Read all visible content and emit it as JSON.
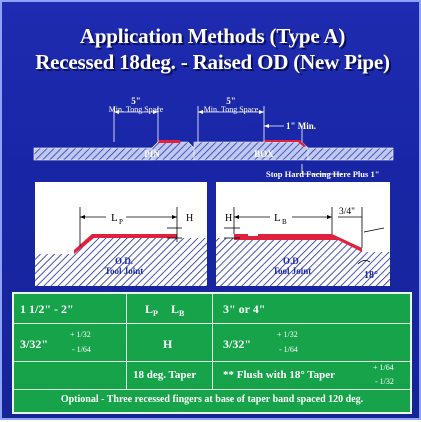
{
  "title": {
    "line1": "Application Methods (Type A)",
    "line2": "Recessed 18deg. - Raised OD (New Pipe)"
  },
  "top_diagram": {
    "dim_left_value": "5\"",
    "dim_left_label": "Min. Tong Space",
    "dim_right_value": "5\"",
    "dim_right_label": "Min. Tong Space",
    "min_label": "1\" Min.",
    "pin_label": "PIN",
    "box_label": "BOX",
    "stop_label": "Stop Hard Facing Here Plus 1\""
  },
  "detail_left": {
    "lp": "L",
    "lp_sub": "P",
    "h": "H",
    "od": "O.D.",
    "tool_joint": "Tool Joint"
  },
  "detail_right": {
    "h": "H",
    "lb": "L",
    "lb_sub": "B",
    "three_quarter": "3/4\"",
    "od": "O.D.",
    "tool_joint": "Tool Joint",
    "angle": "18°"
  },
  "table": {
    "row1": {
      "c1": "1 1/2\" - 2\"",
      "c2_l": "L",
      "c2_lsub": "P",
      "c2_b": "L",
      "c2_bsub": "B",
      "c3": "3\" or 4\""
    },
    "row2": {
      "c1_main": "3/32\"",
      "c1_plus": "+ 1/32",
      "c1_minus": "- 1/64",
      "c2": "H",
      "c3_main": "3/32\"",
      "c3_plus": "+ 1/32",
      "c3_minus": "- 1/64"
    },
    "row3": {
      "c2": "18 deg. Taper",
      "c3_main": "** Flush with 18° Taper",
      "c3_plus": "+ 1/64",
      "c3_minus": "- 1/32"
    },
    "row4": "Optional - Three recessed fingers at base of taper band spaced 120 deg."
  },
  "colors": {
    "background": "#1a28a8",
    "table_green": "#16a34a",
    "hardfacing": "#e0203c",
    "hatch": "#1a28a8"
  }
}
